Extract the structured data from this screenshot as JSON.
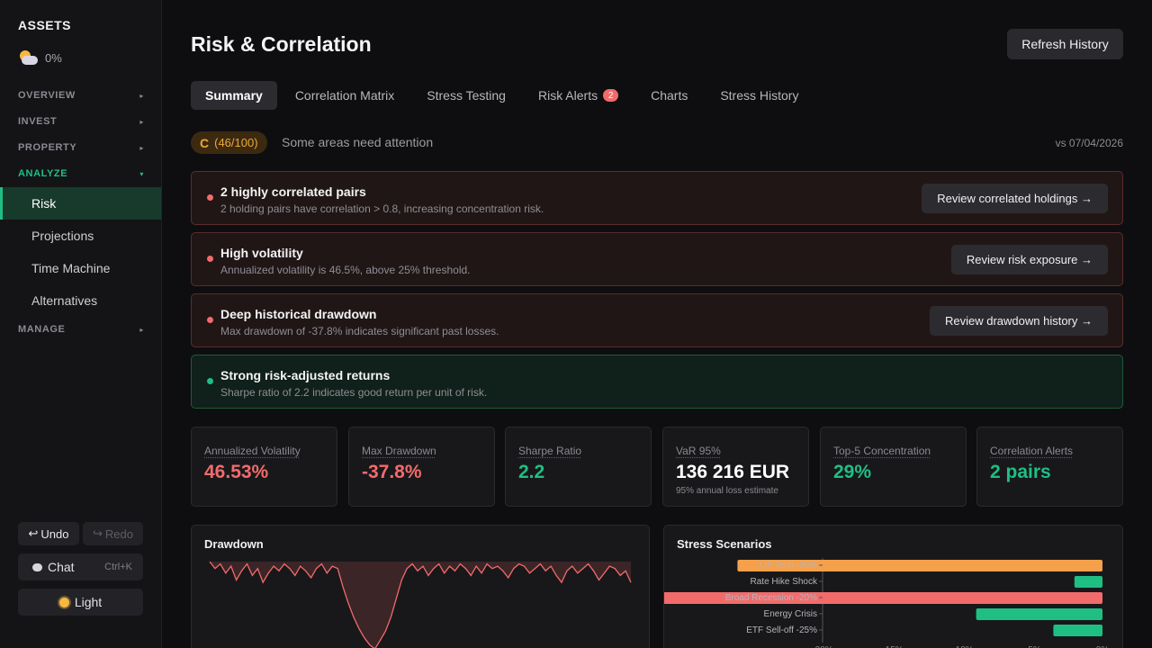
{
  "sidebar": {
    "brand": "ASSETS",
    "weather_value": "0%",
    "sections": [
      {
        "label": "OVERVIEW",
        "chevron": "▸"
      },
      {
        "label": "INVEST",
        "chevron": "▸"
      },
      {
        "label": "PROPERTY",
        "chevron": "▸"
      },
      {
        "label": "ANALYZE",
        "chevron": "▾"
      },
      {
        "label": "MANAGE",
        "chevron": "▸"
      }
    ],
    "items": [
      {
        "label": "Risk"
      },
      {
        "label": "Projections"
      },
      {
        "label": "Time Machine"
      },
      {
        "label": "Alternatives"
      }
    ],
    "undo_label": "Undo",
    "redo_label": "Redo",
    "chat_label": "Chat",
    "chat_shortcut": "Ctrl+K",
    "theme_label": "Light"
  },
  "header": {
    "title": "Risk & Correlation",
    "refresh_label": "Refresh History"
  },
  "tabs": [
    {
      "label": "Summary"
    },
    {
      "label": "Correlation Matrix"
    },
    {
      "label": "Stress Testing"
    },
    {
      "label": "Risk Alerts",
      "badge": "2"
    },
    {
      "label": "Charts"
    },
    {
      "label": "Stress History"
    }
  ],
  "grade": {
    "letter": "C",
    "score": "(46/100)",
    "description": "Some areas need attention",
    "compare": "vs 07/04/2026"
  },
  "alerts": [
    {
      "title": "2 highly correlated pairs",
      "desc": "2 holding pairs have correlation > 0.8, increasing concentration risk.",
      "action": "Review correlated holdings →",
      "status": "bad"
    },
    {
      "title": "High volatility",
      "desc": "Annualized volatility is 46.5%, above 25% threshold.",
      "action": "Review risk exposure →",
      "status": "bad"
    },
    {
      "title": "Deep historical drawdown",
      "desc": "Max drawdown of -37.8% indicates significant past losses.",
      "action": "Review drawdown history →",
      "status": "bad"
    },
    {
      "title": "Strong risk-adjusted returns",
      "desc": "Sharpe ratio of 2.2 indicates good return per unit of risk.",
      "action": "",
      "status": "good"
    }
  ],
  "metrics": [
    {
      "label": "Annualized Volatility",
      "value": "46.53%",
      "sub": "",
      "color": "#f26b6b"
    },
    {
      "label": "Max Drawdown",
      "value": "-37.8%",
      "sub": "",
      "color": "#f26b6b"
    },
    {
      "label": "Sharpe Ratio",
      "value": "2.2",
      "sub": "",
      "color": "#1fbf84"
    },
    {
      "label": "VaR 95%",
      "value": "136 216 EUR",
      "sub": "95% annual loss estimate",
      "color": "#ffffff"
    },
    {
      "label": "Top-5 Concentration",
      "value": "29%",
      "sub": "",
      "color": "#1fbf84"
    },
    {
      "label": "Correlation Alerts",
      "value": "2 pairs",
      "sub": "",
      "color": "#1fbf84"
    }
  ],
  "colors": {
    "accent": "#1fbf84",
    "danger": "#f26b6b",
    "warning": "#f0a73a",
    "bar_orange": "#f5a04a"
  },
  "chart_data": [
    {
      "type": "area",
      "title": "Drawdown",
      "xlabel": "",
      "ylabel": "",
      "series": [
        {
          "values": [
            0,
            -3,
            -1,
            -5,
            -2,
            -8,
            -4,
            -1,
            -6,
            -3,
            -9,
            -5,
            -2,
            -4,
            -1,
            -3,
            -6,
            -2,
            -4,
            -7,
            -3,
            -1,
            -5,
            -2,
            -3,
            -11,
            -18,
            -24,
            -29,
            -33,
            -36,
            -37.8,
            -34,
            -30,
            -24,
            -16,
            -8,
            -3,
            -1,
            -4,
            -2,
            -6,
            -3,
            -1,
            -5,
            -2,
            -4,
            -1,
            -3,
            -6,
            -2,
            -5,
            -1,
            -3,
            -2,
            -4,
            -7,
            -3,
            -1,
            -2,
            -5,
            -3,
            -1,
            -4,
            -2,
            -6,
            -9,
            -4,
            -2,
            -5,
            -3,
            -1,
            -4,
            -8,
            -5,
            -2,
            -3,
            -6,
            -4,
            -9
          ]
        }
      ]
    },
    {
      "type": "bar",
      "title": "Stress Scenarios",
      "orientation": "horizontal",
      "categories": [
        "US Tech -30%",
        "Rate Hike Shock",
        "Broad Recession -20%",
        "Energy Crisis",
        "ETF Sell-off -25%"
      ],
      "values": [
        -26,
        -2,
        -37,
        -9,
        -3.5
      ],
      "xlim": [
        -40,
        0
      ],
      "ticks": [
        "-20%",
        "-15%",
        "-10%",
        "-5%",
        "0%"
      ]
    }
  ]
}
